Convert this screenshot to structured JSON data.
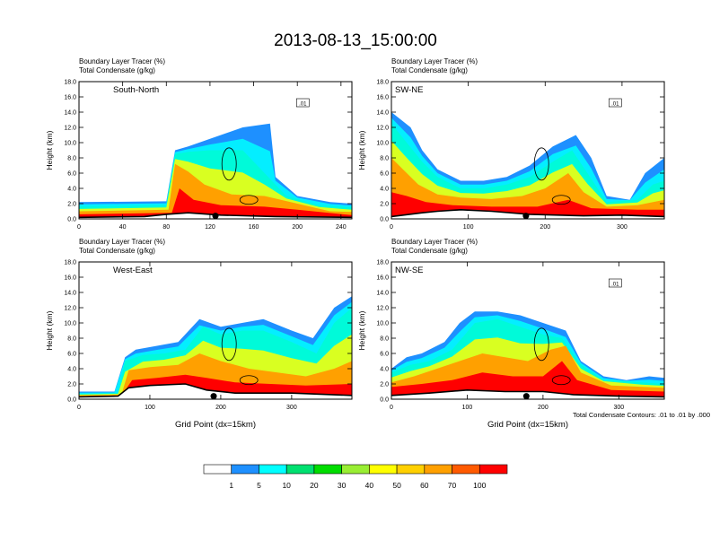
{
  "title": "2013-08-13_15:00:00",
  "field_label": "Boundary Layer Tracer",
  "field_units": "(%)",
  "contour_label": "Total Condensate",
  "contour_units": "(g/kg)",
  "contour_note": "Total Condensate Contours: .01 to .01 by .000",
  "colors": [
    "#ffffff",
    "#1e90ff",
    "#00ffff",
    "#00e070",
    "#00dd00",
    "#99ee33",
    "#ffff00",
    "#ffd000",
    "#ffa000",
    "#ff5a00",
    "#ff0000"
  ],
  "colorbar_labels": [
    "1",
    "5",
    "10",
    "20",
    "30",
    "40",
    "50",
    "60",
    "70",
    "100"
  ],
  "chart_data": [
    {
      "type": "heatmap",
      "panel_label": "South-North",
      "ylabel": "Height (km)",
      "xlabel": "",
      "xlim": [
        0,
        250
      ],
      "ylim": [
        0,
        18
      ],
      "xticks": [
        "0",
        "40",
        "80",
        "120",
        "160",
        "200",
        "240"
      ],
      "yticks": [
        "0.0",
        "2.0",
        "4.0",
        "6.0",
        "8.0",
        "10.0",
        "12.0",
        "14.0",
        "16.0",
        "18.0"
      ],
      "contour_box_label": ".01",
      "marker_x": 125,
      "terrain": [
        [
          0,
          0.2
        ],
        [
          60,
          0.3
        ],
        [
          80,
          0.6
        ],
        [
          100,
          0.8
        ],
        [
          130,
          0.5
        ],
        [
          180,
          0.3
        ],
        [
          250,
          0.2
        ]
      ],
      "tracer_bands": [
        {
          "level": 1,
          "top": [
            [
              0,
              2.2
            ],
            [
              80,
              2.3
            ],
            [
              88,
              9.0
            ],
            [
              100,
              9.5
            ],
            [
              120,
              10.5
            ],
            [
              150,
              12.0
            ],
            [
              175,
              12.5
            ],
            [
              180,
              5.5
            ],
            [
              200,
              3.0
            ],
            [
              230,
              2.2
            ],
            [
              250,
              2.0
            ]
          ]
        },
        {
          "level": 4,
          "top": [
            [
              0,
              1.6
            ],
            [
              80,
              1.8
            ],
            [
              88,
              8.5
            ],
            [
              100,
              8.8
            ],
            [
              120,
              9.0
            ],
            [
              150,
              9.0
            ],
            [
              170,
              6.0
            ],
            [
              190,
              3.0
            ],
            [
              220,
              1.8
            ],
            [
              250,
              1.5
            ]
          ]
        },
        {
          "level": 8,
          "top": [
            [
              0,
              1.0
            ],
            [
              82,
              1.2
            ],
            [
              88,
              7.2
            ],
            [
              100,
              6.2
            ],
            [
              115,
              4.5
            ],
            [
              140,
              3.2
            ],
            [
              170,
              3.0
            ],
            [
              200,
              2.0
            ],
            [
              230,
              1.0
            ],
            [
              250,
              0.9
            ]
          ]
        },
        {
          "level": 10,
          "top": [
            [
              0,
              0.6
            ],
            [
              85,
              0.8
            ],
            [
              92,
              4.0
            ],
            [
              105,
              2.5
            ],
            [
              130,
              1.8
            ],
            [
              170,
              1.6
            ],
            [
              200,
              1.2
            ],
            [
              250,
              0.5
            ]
          ]
        }
      ]
    },
    {
      "type": "heatmap",
      "panel_label": "SW-NE",
      "ylabel": "Height (km)",
      "xlabel": "",
      "xlim": [
        0,
        355
      ],
      "ylim": [
        0,
        18
      ],
      "xticks": [
        "0",
        "100",
        "200",
        "300"
      ],
      "yticks": [
        "0.0",
        "2.0",
        "4.0",
        "6.0",
        "8.0",
        "10.0",
        "12.0",
        "14.0",
        "16.0",
        "18.0"
      ],
      "contour_box_label": ".01",
      "marker_x": 175,
      "terrain": [
        [
          0,
          0.3
        ],
        [
          40,
          0.8
        ],
        [
          60,
          1.0
        ],
        [
          90,
          1.2
        ],
        [
          130,
          1.0
        ],
        [
          180,
          0.6
        ],
        [
          250,
          0.4
        ],
        [
          300,
          0.5
        ],
        [
          355,
          0.3
        ]
      ],
      "tracer_bands": [
        {
          "level": 1,
          "top": [
            [
              0,
              14.0
            ],
            [
              25,
              12.0
            ],
            [
              40,
              9.0
            ],
            [
              60,
              6.5
            ],
            [
              90,
              5.0
            ],
            [
              120,
              5.0
            ],
            [
              150,
              5.5
            ],
            [
              180,
              7.0
            ],
            [
              210,
              9.5
            ],
            [
              240,
              11.0
            ],
            [
              260,
              8.0
            ],
            [
              280,
              3.0
            ],
            [
              310,
              2.5
            ],
            [
              330,
              6.0
            ],
            [
              355,
              8.0
            ]
          ]
        },
        {
          "level": 4,
          "top": [
            [
              0,
              12.5
            ],
            [
              20,
              10.0
            ],
            [
              40,
              7.5
            ],
            [
              60,
              5.5
            ],
            [
              90,
              4.0
            ],
            [
              120,
              4.0
            ],
            [
              150,
              4.5
            ],
            [
              180,
              5.5
            ],
            [
              210,
              7.5
            ],
            [
              235,
              9.0
            ],
            [
              255,
              6.0
            ],
            [
              280,
              2.2
            ],
            [
              320,
              2.5
            ],
            [
              340,
              4.5
            ],
            [
              355,
              5.0
            ]
          ]
        },
        {
          "level": 8,
          "top": [
            [
              0,
              8.0
            ],
            [
              15,
              6.5
            ],
            [
              35,
              4.5
            ],
            [
              60,
              3.2
            ],
            [
              90,
              2.8
            ],
            [
              130,
              2.6
            ],
            [
              170,
              3.0
            ],
            [
              200,
              4.0
            ],
            [
              230,
              6.0
            ],
            [
              250,
              3.5
            ],
            [
              280,
              1.6
            ],
            [
              320,
              1.8
            ],
            [
              355,
              2.5
            ]
          ]
        },
        {
          "level": 10,
          "top": [
            [
              0,
              3.5
            ],
            [
              20,
              3.0
            ],
            [
              45,
              2.2
            ],
            [
              80,
              1.8
            ],
            [
              130,
              1.6
            ],
            [
              190,
              1.6
            ],
            [
              230,
              2.5
            ],
            [
              260,
              1.4
            ],
            [
              320,
              1.2
            ],
            [
              355,
              1.2
            ]
          ]
        }
      ]
    },
    {
      "type": "heatmap",
      "panel_label": "West-East",
      "ylabel": "Height (km)",
      "xlabel": "Grid Point (dx=15km)",
      "xlim": [
        0,
        385
      ],
      "ylim": [
        0,
        18
      ],
      "xticks": [
        "0",
        "100",
        "200",
        "300"
      ],
      "yticks": [
        "0.0",
        "2.0",
        "4.0",
        "6.0",
        "8.0",
        "10.0",
        "12.0",
        "14.0",
        "16.0",
        "18.0"
      ],
      "contour_box_label": "",
      "marker_x": 190,
      "terrain": [
        [
          0,
          0.3
        ],
        [
          55,
          0.4
        ],
        [
          70,
          1.5
        ],
        [
          100,
          1.8
        ],
        [
          150,
          2.0
        ],
        [
          180,
          1.2
        ],
        [
          220,
          0.8
        ],
        [
          300,
          0.8
        ],
        [
          385,
          0.5
        ]
      ],
      "tracer_bands": [
        {
          "level": 1,
          "top": [
            [
              0,
              1.0
            ],
            [
              50,
              1.0
            ],
            [
              65,
              5.5
            ],
            [
              80,
              6.5
            ],
            [
              110,
              7.0
            ],
            [
              140,
              7.5
            ],
            [
              170,
              10.5
            ],
            [
              200,
              9.5
            ],
            [
              230,
              10.0
            ],
            [
              260,
              10.5
            ],
            [
              300,
              9.0
            ],
            [
              330,
              8.0
            ],
            [
              360,
              12.0
            ],
            [
              385,
              13.5
            ]
          ]
        },
        {
          "level": 4,
          "top": [
            [
              0,
              0.7
            ],
            [
              55,
              0.8
            ],
            [
              65,
              5.0
            ],
            [
              90,
              5.8
            ],
            [
              120,
              6.0
            ],
            [
              150,
              6.5
            ],
            [
              175,
              9.5
            ],
            [
              200,
              8.5
            ],
            [
              230,
              9.0
            ],
            [
              260,
              9.0
            ],
            [
              300,
              7.5
            ],
            [
              335,
              6.0
            ],
            [
              360,
              10.0
            ],
            [
              385,
              12.0
            ]
          ]
        },
        {
          "level": 8,
          "top": [
            [
              0,
              0.5
            ],
            [
              60,
              0.6
            ],
            [
              70,
              3.8
            ],
            [
              100,
              4.2
            ],
            [
              140,
              4.5
            ],
            [
              170,
              6.0
            ],
            [
              200,
              5.0
            ],
            [
              240,
              4.0
            ],
            [
              280,
              3.5
            ],
            [
              320,
              3.0
            ],
            [
              360,
              4.0
            ],
            [
              385,
              5.0
            ]
          ]
        },
        {
          "level": 10,
          "top": [
            [
              0,
              0.4
            ],
            [
              60,
              0.5
            ],
            [
              75,
              2.5
            ],
            [
              110,
              2.8
            ],
            [
              150,
              3.2
            ],
            [
              180,
              2.8
            ],
            [
              220,
              2.2
            ],
            [
              270,
              2.0
            ],
            [
              320,
              1.8
            ],
            [
              385,
              2.0
            ]
          ]
        }
      ]
    },
    {
      "type": "heatmap",
      "panel_label": "NW-SE",
      "ylabel": "Height (km)",
      "xlabel": "Grid Point (dx=15km)",
      "xlim": [
        0,
        360
      ],
      "ylim": [
        0,
        18
      ],
      "xticks": [
        "0",
        "100",
        "200",
        "300"
      ],
      "yticks": [
        "0.0",
        "2.0",
        "4.0",
        "6.0",
        "8.0",
        "10.0",
        "12.0",
        "14.0",
        "16.0",
        "18.0"
      ],
      "contour_box_label": ".01",
      "marker_x": 178,
      "terrain": [
        [
          0,
          0.5
        ],
        [
          50,
          0.8
        ],
        [
          100,
          1.2
        ],
        [
          150,
          1.0
        ],
        [
          200,
          1.0
        ],
        [
          240,
          0.6
        ],
        [
          300,
          0.4
        ],
        [
          360,
          0.3
        ]
      ],
      "tracer_bands": [
        {
          "level": 1,
          "top": [
            [
              0,
              4.0
            ],
            [
              20,
              5.5
            ],
            [
              40,
              6.0
            ],
            [
              70,
              7.5
            ],
            [
              90,
              10.0
            ],
            [
              110,
              11.5
            ],
            [
              140,
              11.5
            ],
            [
              170,
              11.0
            ],
            [
              200,
              10.0
            ],
            [
              230,
              9.0
            ],
            [
              250,
              5.0
            ],
            [
              280,
              3.0
            ],
            [
              310,
              2.5
            ],
            [
              340,
              3.0
            ],
            [
              360,
              2.8
            ]
          ]
        },
        {
          "level": 4,
          "top": [
            [
              0,
              3.5
            ],
            [
              25,
              4.5
            ],
            [
              50,
              5.0
            ],
            [
              80,
              6.5
            ],
            [
              110,
              10.0
            ],
            [
              140,
              10.5
            ],
            [
              170,
              9.5
            ],
            [
              200,
              8.5
            ],
            [
              225,
              8.0
            ],
            [
              250,
              4.5
            ],
            [
              280,
              2.5
            ],
            [
              330,
              2.2
            ],
            [
              360,
              2.0
            ]
          ]
        },
        {
          "level": 8,
          "top": [
            [
              0,
              2.2
            ],
            [
              30,
              3.0
            ],
            [
              60,
              4.0
            ],
            [
              90,
              5.0
            ],
            [
              120,
              6.0
            ],
            [
              150,
              5.5
            ],
            [
              180,
              5.0
            ],
            [
              210,
              6.5
            ],
            [
              230,
              7.0
            ],
            [
              250,
              3.5
            ],
            [
              290,
              1.8
            ],
            [
              360,
              1.5
            ]
          ]
        },
        {
          "level": 10,
          "top": [
            [
              0,
              1.6
            ],
            [
              40,
              2.0
            ],
            [
              80,
              2.5
            ],
            [
              120,
              3.5
            ],
            [
              160,
              3.0
            ],
            [
              200,
              3.0
            ],
            [
              225,
              5.0
            ],
            [
              245,
              2.5
            ],
            [
              290,
              1.2
            ],
            [
              360,
              1.0
            ]
          ]
        }
      ]
    }
  ]
}
